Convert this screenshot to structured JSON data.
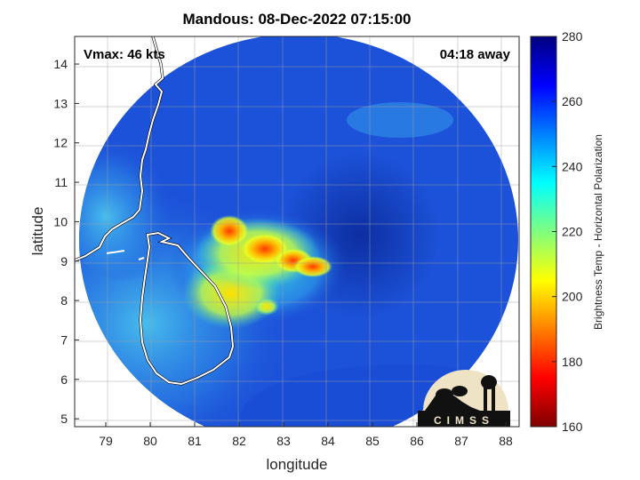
{
  "chart_data": {
    "type": "heatmap",
    "title": "Mandous: 08-Dec-2022 07:15:00",
    "xlabel": "longitude",
    "ylabel": "latitude",
    "xlim": [
      78.3,
      88.3
    ],
    "ylim": [
      4.8,
      14.7
    ],
    "xticks": [
      79,
      80,
      81,
      82,
      83,
      84,
      85,
      86,
      87,
      88
    ],
    "yticks": [
      5,
      6,
      7,
      8,
      9,
      10,
      11,
      12,
      13,
      14
    ],
    "grid": true,
    "colorbar": {
      "label": "Brightness Temp - Horizontal Polarization",
      "range": [
        160,
        280
      ],
      "ticks": [
        160,
        180,
        200,
        220,
        240,
        260,
        280
      ],
      "colormap": "jet"
    },
    "annotations": {
      "vmax": "Vmax: 46 kts",
      "time_away": "04:18 away"
    },
    "swath_center": [
      83.2,
      9.3
    ],
    "cold_cores": [
      {
        "lon": 82.5,
        "lat": 9.4,
        "tb": 188
      },
      {
        "lon": 81.8,
        "lat": 9.9,
        "tb": 195
      },
      {
        "lon": 83.5,
        "lat": 8.9,
        "tb": 192
      },
      {
        "lon": 82.2,
        "lat": 8.6,
        "tb": 215
      }
    ],
    "logo": "CIMSS"
  },
  "colors": {
    "background": "#ffffff",
    "coastline": "#ffffff",
    "swath_base": "#1c52d9"
  }
}
